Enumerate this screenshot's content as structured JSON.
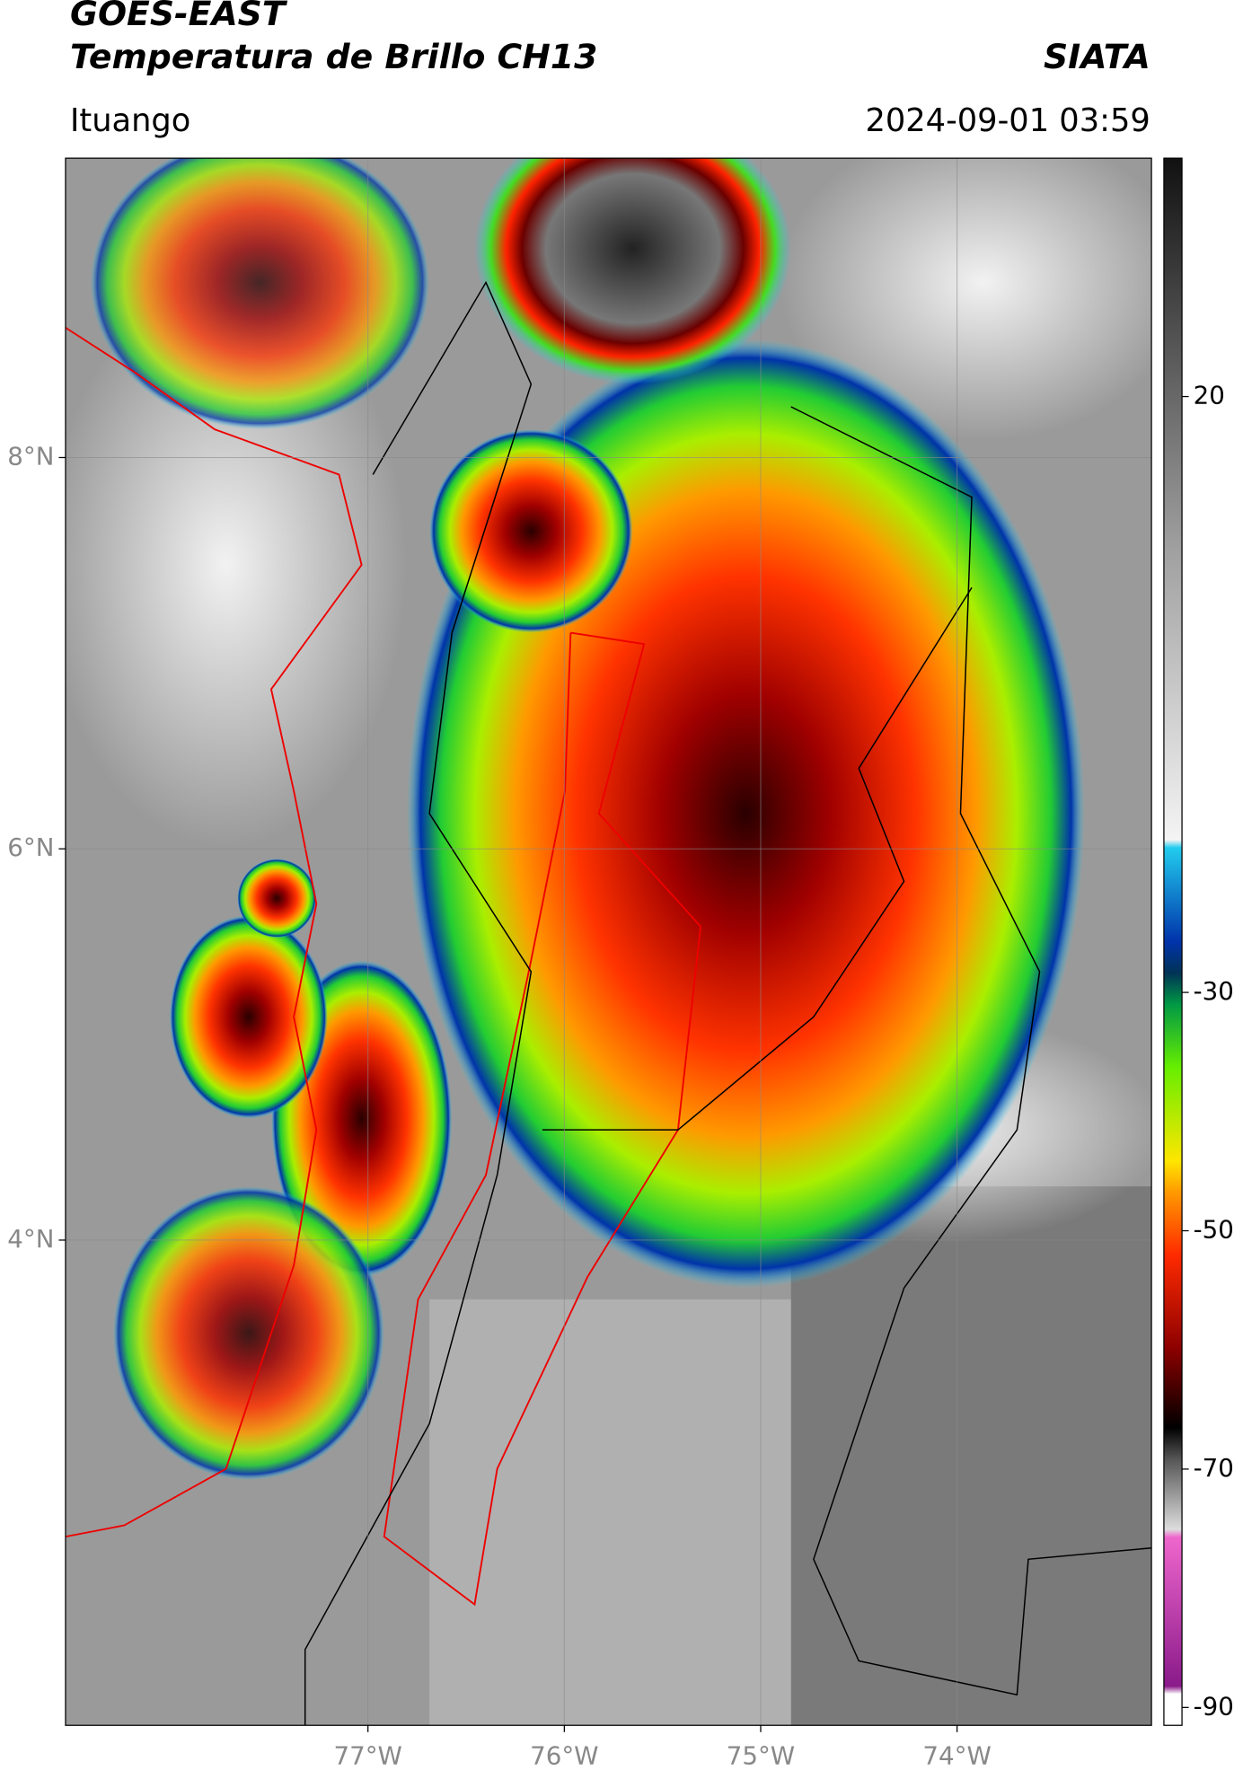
{
  "chart_data": {
    "type": "map",
    "title": "GOES-EAST",
    "subtitle": "Temperatura de Brillo CH13",
    "source": "SIATA",
    "location": "Ituango",
    "datetime": "2024-09-01 03:59",
    "xlim": [
      -78.54,
      -73.01
    ],
    "ylim": [
      1.52,
      9.53
    ],
    "xticks": [
      {
        "value": -77,
        "label": "77°W"
      },
      {
        "value": -76,
        "label": "76°W"
      },
      {
        "value": -75,
        "label": "75°W"
      },
      {
        "value": -74,
        "label": "74°W"
      }
    ],
    "yticks": [
      {
        "value": 4,
        "label": "4°N"
      },
      {
        "value": 6,
        "label": "6°N"
      },
      {
        "value": 8,
        "label": "8°N"
      }
    ],
    "grid": true,
    "colorbar": {
      "lim": [
        -91.5,
        40
      ],
      "ticks": [
        20,
        -30,
        -50,
        -70,
        -90
      ]
    }
  }
}
